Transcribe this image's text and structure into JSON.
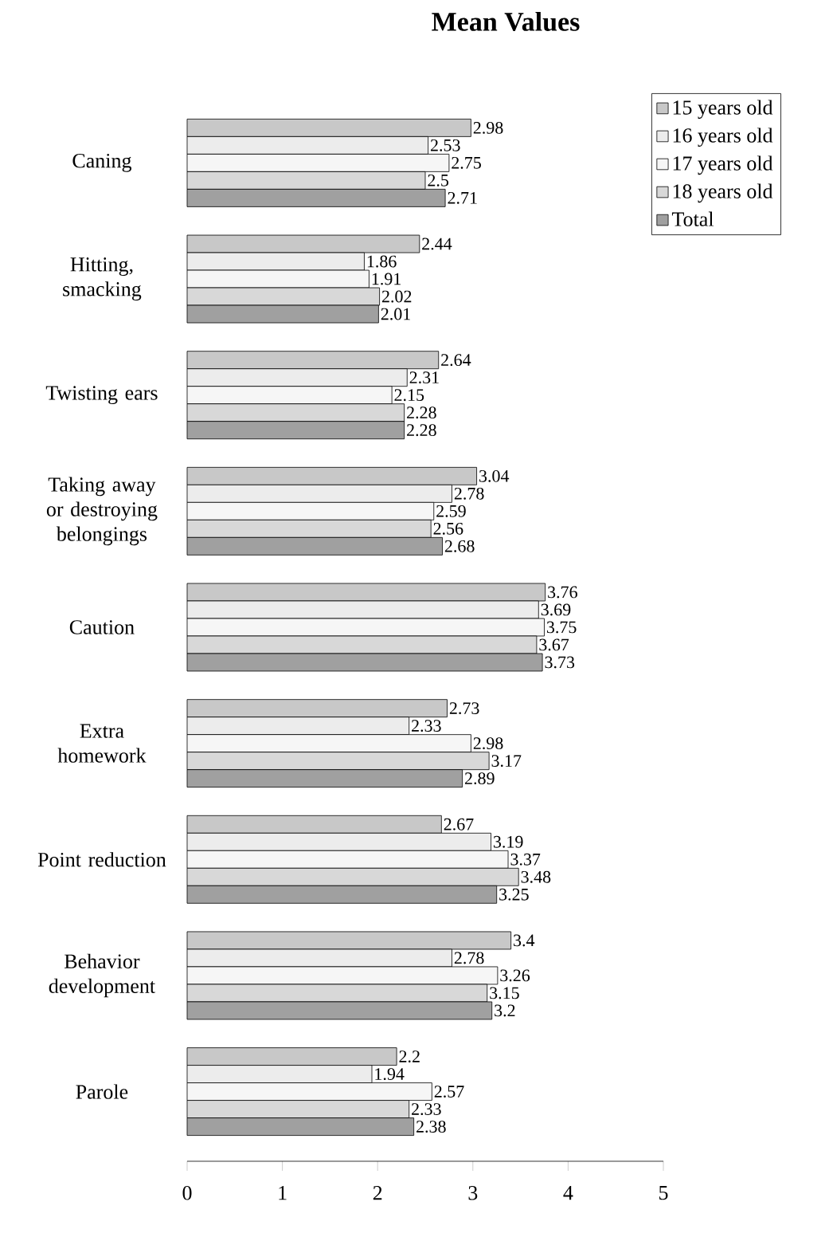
{
  "chart_data": {
    "type": "bar",
    "orientation": "horizontal",
    "title": "Mean Values",
    "categories": [
      "Caning",
      "Hitting, smacking",
      "Twisting ears",
      "Taking away or destroying belongings",
      "Caution",
      "Extra homework",
      "Point reduction",
      "Behavior development",
      "Parole"
    ],
    "series": [
      {
        "name": "15 years old",
        "color": "#c8c8c8",
        "values": [
          2.98,
          2.44,
          2.64,
          3.04,
          3.76,
          2.73,
          2.67,
          3.4,
          2.2
        ]
      },
      {
        "name": "16 years old",
        "color": "#ececec",
        "values": [
          2.53,
          1.86,
          2.31,
          2.78,
          3.69,
          2.33,
          3.19,
          2.78,
          1.94
        ]
      },
      {
        "name": "17 years old",
        "color": "#f6f6f6",
        "values": [
          2.75,
          1.91,
          2.15,
          2.59,
          3.75,
          2.98,
          3.37,
          3.26,
          2.57
        ]
      },
      {
        "name": "18 years old",
        "color": "#d8d8d8",
        "values": [
          2.5,
          2.02,
          2.28,
          2.56,
          3.67,
          3.17,
          3.48,
          3.15,
          2.33
        ]
      },
      {
        "name": "Total",
        "color": "#a0a0a0",
        "values": [
          2.71,
          2.01,
          2.28,
          2.68,
          3.73,
          2.89,
          3.25,
          3.2,
          2.38
        ]
      }
    ],
    "xlim": [
      0,
      5
    ],
    "xticks": [
      0,
      1,
      2,
      3,
      4,
      5
    ],
    "data_labels": true,
    "legend": "top right",
    "grid": false
  }
}
